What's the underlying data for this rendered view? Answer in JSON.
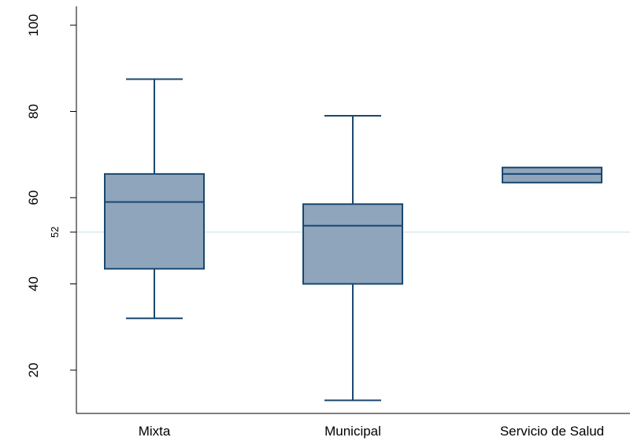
{
  "chart_data": {
    "type": "box",
    "title": "",
    "xlabel": "",
    "ylabel": "",
    "ylim": [
      10,
      100
    ],
    "y_ticks": [
      20,
      40,
      60,
      80,
      100
    ],
    "grid": false,
    "reference_line": {
      "value": 52,
      "label": "52",
      "color": "#c6dfe8"
    },
    "box_fill": "#8ea5bc",
    "box_stroke": "#1a476f",
    "categories": [
      "Mixta",
      "Municipal",
      "Servicio de Salud"
    ],
    "boxes": [
      {
        "category": "Mixta",
        "whisker_low": 32,
        "q1": 43.5,
        "median": 59,
        "q3": 65.5,
        "whisker_high": 87.5
      },
      {
        "category": "Municipal",
        "whisker_low": 13,
        "q1": 40,
        "median": 53.5,
        "q3": 58.5,
        "whisker_high": 79
      },
      {
        "category": "Servicio de Salud",
        "whisker_low": 63.5,
        "q1": 63.5,
        "median": 65.5,
        "q3": 67,
        "whisker_high": 67
      }
    ]
  }
}
